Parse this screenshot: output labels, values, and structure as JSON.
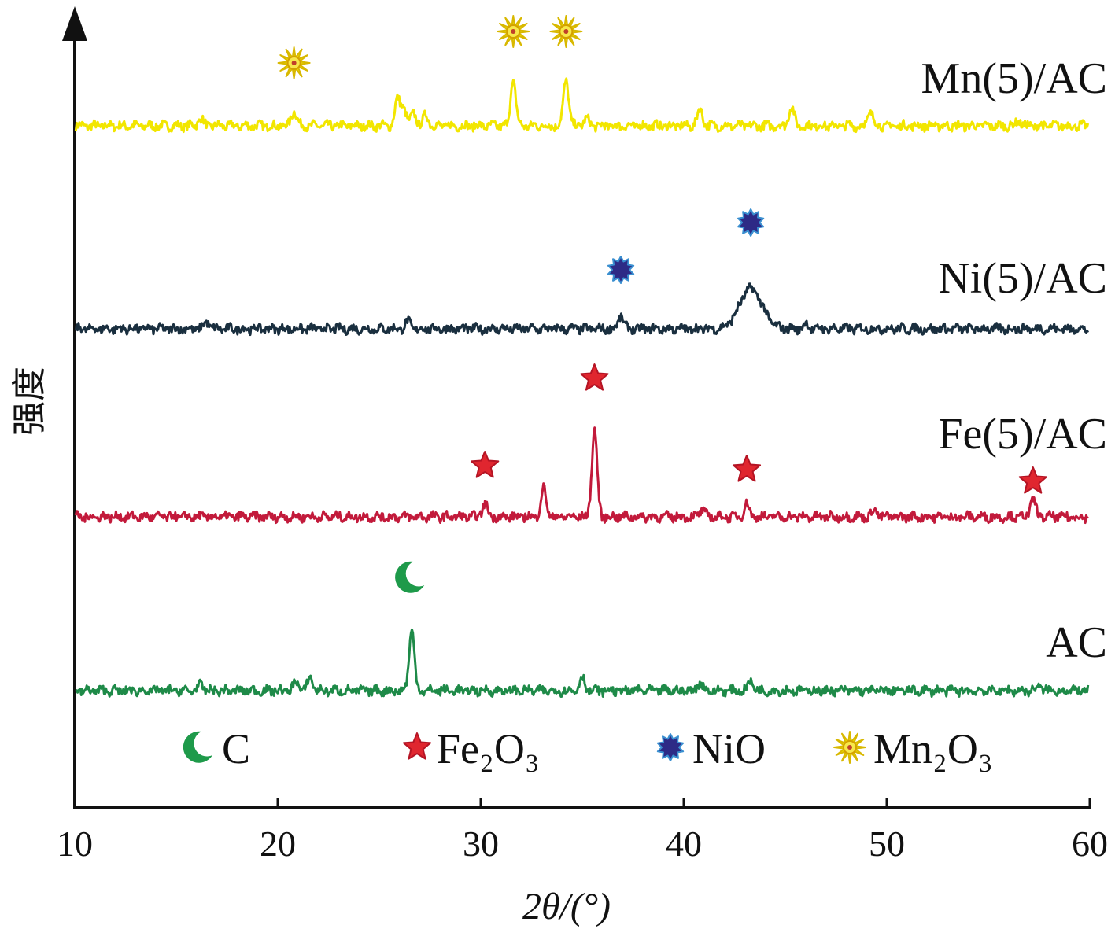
{
  "chart_data": {
    "type": "line",
    "xlabel": "2θ/(°)",
    "ylabel": "强度",
    "xlim": [
      10,
      60
    ],
    "xticks": [
      10,
      20,
      30,
      40,
      50,
      60
    ],
    "yticks_shown": false,
    "series": [
      {
        "name": "Mn(5)/AC",
        "color": "#f2e600",
        "baseline": 0,
        "peaks": [
          [
            16.2,
            0.3
          ],
          [
            20.8,
            0.65
          ],
          [
            25.9,
            1.1
          ],
          [
            26.2,
            0.75
          ],
          [
            26.7,
            0.55
          ],
          [
            27.3,
            0.45
          ],
          [
            31.6,
            1.9
          ],
          [
            34.2,
            1.95
          ],
          [
            35.2,
            0.3
          ],
          [
            40.8,
            0.7
          ],
          [
            45.3,
            0.8
          ],
          [
            49.2,
            0.6
          ],
          [
            56.5,
            0.2
          ]
        ]
      },
      {
        "name": "Ni(5)/AC",
        "color": "#1a2f3f",
        "baseline": 0,
        "peaks": [
          [
            16.5,
            0.3
          ],
          [
            26.4,
            0.3
          ],
          [
            36.9,
            0.55
          ],
          [
            43.3,
            1.7
          ],
          [
            46.0,
            0.2
          ]
        ]
      },
      {
        "name": "Fe(5)/AC",
        "color": "#c21a3b",
        "baseline": 0,
        "peaks": [
          [
            30.2,
            0.55
          ],
          [
            33.1,
            1.2
          ],
          [
            35.6,
            3.7
          ],
          [
            40.9,
            0.3
          ],
          [
            43.1,
            0.55
          ],
          [
            49.4,
            0.3
          ],
          [
            57.2,
            0.75
          ]
        ]
      },
      {
        "name": "AC",
        "color": "#1e8a48",
        "baseline": 0,
        "peaks": [
          [
            16.2,
            0.25
          ],
          [
            20.9,
            0.4
          ],
          [
            21.6,
            0.55
          ],
          [
            26.6,
            2.6
          ],
          [
            35.0,
            0.55
          ],
          [
            40.8,
            0.35
          ],
          [
            43.3,
            0.4
          ],
          [
            57.5,
            0.2
          ]
        ]
      }
    ],
    "phase_markers": {
      "Mn2O3": [
        20.8,
        31.6,
        34.2
      ],
      "NiO": [
        36.9,
        43.3
      ],
      "Fe2O3": [
        30.2,
        35.6,
        43.1,
        57.2
      ],
      "C": [
        26.6
      ]
    },
    "legend": {
      "placement": "bottom-inside",
      "items": [
        {
          "label": "C",
          "icon": "crescent-icon",
          "color": "#1e9a4a"
        },
        {
          "label": "Fe₂O₃",
          "icon": "star-icon",
          "color": "#e0262f"
        },
        {
          "label": "NiO",
          "icon": "starburst-icon",
          "color": "#2d2a86"
        },
        {
          "label": "Mn₂O₃",
          "icon": "sun-icon",
          "color": "#f3e000"
        }
      ]
    },
    "grid": false
  }
}
